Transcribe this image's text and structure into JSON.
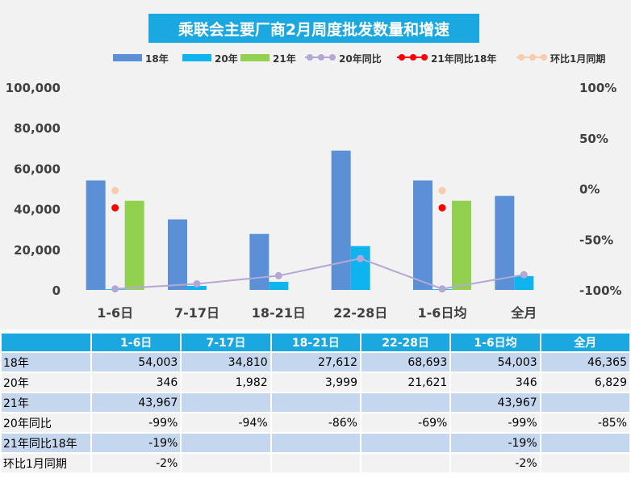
{
  "title": "乘联会主要厂商2月周度批发数量和增速",
  "colors": {
    "s18": "#5b8fd6",
    "s20": "#0fb4ef",
    "s21": "#92d050",
    "line20": "#b4a7d6",
    "line21": "#ff0000",
    "lineMoM": "#f8cbad",
    "header": "#1ba8e0",
    "rowShade": "#c5d7ee"
  },
  "chart_data": {
    "type": "bar",
    "title": "乘联会主要厂商2月周度批发数量和增速",
    "categories": [
      "1-6日",
      "7-17日",
      "18-21日",
      "22-28日",
      "1-6日均",
      "全月"
    ],
    "series": [
      {
        "name": "18年",
        "kind": "bar",
        "values": [
          54003,
          34810,
          27612,
          68693,
          54003,
          46365
        ]
      },
      {
        "name": "20年",
        "kind": "bar",
        "values": [
          346,
          1982,
          3999,
          21621,
          346,
          6829
        ]
      },
      {
        "name": "21年",
        "kind": "bar",
        "values": [
          43967,
          null,
          null,
          null,
          43967,
          null
        ]
      },
      {
        "name": "20年同比",
        "kind": "line",
        "axis": "right",
        "values": [
          -99,
          -94,
          -86,
          -69,
          -99,
          -85
        ]
      },
      {
        "name": "21年同比18年",
        "kind": "line",
        "axis": "right",
        "values": [
          -19,
          null,
          null,
          null,
          -19,
          null
        ]
      },
      {
        "name": "环比1月同期",
        "kind": "line",
        "axis": "right",
        "values": [
          -2,
          null,
          null,
          null,
          -2,
          null
        ]
      }
    ],
    "ylim": [
      0,
      100000
    ],
    "y2lim": [
      -100,
      100
    ],
    "yticks": [
      "0",
      "20,000",
      "40,000",
      "60,000",
      "80,000",
      "100,000"
    ],
    "y2ticks": [
      "-100%",
      "-50%",
      "0%",
      "50%",
      "100%"
    ],
    "xlabel": "",
    "ylabel": "",
    "legend": "top",
    "grid": false
  },
  "table": {
    "headers": [
      "1-6日",
      "7-17日",
      "18-21日",
      "22-28日",
      "1-6日均",
      "全月"
    ],
    "rows": [
      {
        "label": "18年",
        "cells": [
          "54,003",
          "34,810",
          "27,612",
          "68,693",
          "54,003",
          "46,365"
        ]
      },
      {
        "label": "20年",
        "cells": [
          "346",
          "1,982",
          "3,999",
          "21,621",
          "346",
          "6,829"
        ]
      },
      {
        "label": "21年",
        "cells": [
          "43,967",
          "",
          "",
          "",
          "43,967",
          ""
        ]
      },
      {
        "label": "20年同比",
        "cells": [
          "-99%",
          "-94%",
          "-86%",
          "-69%",
          "-99%",
          "-85%"
        ]
      },
      {
        "label": "21年同比18年",
        "cells": [
          "-19%",
          "",
          "",
          "",
          "-19%",
          ""
        ]
      },
      {
        "label": "环比1月同期",
        "cells": [
          "-2%",
          "",
          "",
          "",
          "-2%",
          ""
        ]
      }
    ]
  }
}
